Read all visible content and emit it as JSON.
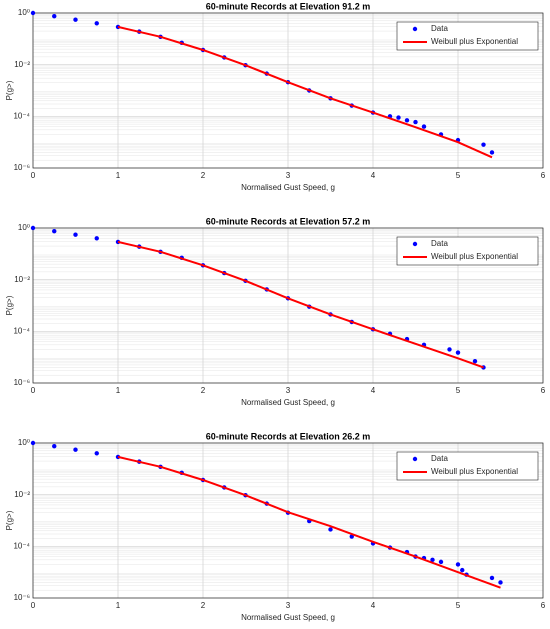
{
  "chart_data": [
    {
      "type": "scatter",
      "title": "60-minute Records at Elevation 91.2 m",
      "xlabel": "Normalised Gust Speed, g",
      "ylabel": "P(g>)",
      "ylog": true,
      "grid": true,
      "legend": "upper right",
      "xlim": [
        0,
        6
      ],
      "xticks": [
        0,
        1,
        2,
        3,
        4,
        5,
        6
      ],
      "ylim": [
        1e-06,
        1
      ],
      "yticks": [
        {
          "value": 1e-06,
          "label": "10⁻⁶"
        },
        {
          "value": 0.0001,
          "label": "10⁻⁴"
        },
        {
          "value": 0.01,
          "label": "10⁻²"
        },
        {
          "value": 1,
          "label": "10⁰"
        }
      ],
      "series": [
        {
          "name": "Data",
          "kind": "scatter",
          "color": "#0000ff",
          "x": [
            0,
            0.25,
            0.5,
            0.75,
            1,
            1.25,
            1.5,
            1.75,
            2,
            2.25,
            2.5,
            2.75,
            3,
            3.25,
            3.5,
            3.75,
            4,
            4.2,
            4.3,
            4.4,
            4.5,
            4.6,
            4.8,
            5,
            5.3,
            5.4
          ],
          "values": [
            1,
            0.75,
            0.55,
            0.4,
            0.29,
            0.19,
            0.12,
            0.07,
            0.037,
            0.019,
            0.0095,
            0.0045,
            0.0021,
            0.001,
            0.0005,
            0.00026,
            0.00014,
            0.0001,
            9e-05,
            7e-05,
            6e-05,
            4e-05,
            2e-05,
            1.2e-05,
            8e-06,
            4e-06
          ]
        },
        {
          "name": "Weibull plus Exponential",
          "kind": "line",
          "color": "#ff0000",
          "x": [
            1,
            1.5,
            2,
            2.5,
            3,
            3.5,
            4,
            4.5,
            5,
            5.4
          ],
          "values": [
            0.29,
            0.12,
            0.037,
            0.0095,
            0.0021,
            0.0005,
            0.00014,
            3.8e-05,
            1e-05,
            2.6e-06
          ]
        }
      ]
    },
    {
      "type": "scatter",
      "title": "60-minute Records at Elevation 57.2 m",
      "xlabel": "Normalised Gust Speed, g",
      "ylabel": "P(g>)",
      "ylog": true,
      "grid": true,
      "legend": "upper right",
      "xlim": [
        0,
        6
      ],
      "xticks": [
        0,
        1,
        2,
        3,
        4,
        5,
        6
      ],
      "ylim": [
        1e-06,
        1
      ],
      "yticks": [
        {
          "value": 1e-06,
          "label": "10⁻⁶"
        },
        {
          "value": 0.0001,
          "label": "10⁻⁴"
        },
        {
          "value": 0.01,
          "label": "10⁻²"
        },
        {
          "value": 1,
          "label": "10⁰"
        }
      ],
      "series": [
        {
          "name": "Data",
          "kind": "scatter",
          "color": "#0000ff",
          "x": [
            0,
            0.25,
            0.5,
            0.75,
            1,
            1.25,
            1.5,
            1.75,
            2,
            2.25,
            2.5,
            2.75,
            3,
            3.25,
            3.5,
            3.75,
            4,
            4.2,
            4.4,
            4.6,
            4.9,
            5,
            5.2,
            5.3
          ],
          "values": [
            1,
            0.75,
            0.55,
            0.4,
            0.29,
            0.19,
            0.12,
            0.07,
            0.036,
            0.018,
            0.009,
            0.0042,
            0.0019,
            0.0009,
            0.00045,
            0.00023,
            0.00012,
            8e-05,
            5e-05,
            3e-05,
            2e-05,
            1.5e-05,
            7e-06,
            4e-06
          ]
        },
        {
          "name": "Weibull plus Exponential",
          "kind": "line",
          "color": "#ff0000",
          "x": [
            1,
            1.5,
            2,
            2.5,
            3,
            3.5,
            4,
            4.5,
            5,
            5.3
          ],
          "values": [
            0.29,
            0.12,
            0.036,
            0.009,
            0.0019,
            0.00045,
            0.00012,
            3.3e-05,
            9e-06,
            4e-06
          ]
        }
      ]
    },
    {
      "type": "scatter",
      "title": "60-minute Records at Elevation 26.2 m",
      "xlabel": "Normalised Gust Speed, g",
      "ylabel": "P(g>)",
      "ylog": true,
      "grid": true,
      "legend": "upper right",
      "xlim": [
        0,
        6
      ],
      "xticks": [
        0,
        1,
        2,
        3,
        4,
        5,
        6
      ],
      "ylim": [
        1e-06,
        1
      ],
      "yticks": [
        {
          "value": 1e-06,
          "label": "10⁻⁶"
        },
        {
          "value": 0.0001,
          "label": "10⁻⁴"
        },
        {
          "value": 0.01,
          "label": "10⁻²"
        },
        {
          "value": 1,
          "label": "10⁰"
        }
      ],
      "series": [
        {
          "name": "Data",
          "kind": "scatter",
          "color": "#0000ff",
          "x": [
            0,
            0.25,
            0.5,
            0.75,
            1,
            1.25,
            1.5,
            1.75,
            2,
            2.25,
            2.5,
            2.75,
            3,
            3.25,
            3.5,
            3.75,
            4,
            4.2,
            4.4,
            4.5,
            4.6,
            4.7,
            4.8,
            5,
            5.05,
            5.1,
            5.4,
            5.5
          ],
          "values": [
            1,
            0.75,
            0.55,
            0.4,
            0.29,
            0.19,
            0.12,
            0.07,
            0.037,
            0.019,
            0.0095,
            0.0045,
            0.002,
            0.00095,
            0.00045,
            0.00024,
            0.00013,
            9e-05,
            6e-05,
            4e-05,
            3.5e-05,
            3e-05,
            2.5e-05,
            2e-05,
            1.2e-05,
            8e-06,
            6e-06,
            4e-06
          ]
        },
        {
          "name": "Weibull plus Exponential",
          "kind": "line",
          "color": "#ff0000",
          "x": [
            1,
            1.5,
            2,
            2.5,
            3,
            3.5,
            4,
            4.5,
            5,
            5.5
          ],
          "values": [
            0.29,
            0.12,
            0.037,
            0.0095,
            0.0021,
            0.0006,
            0.00015,
            4e-05,
            1e-05,
            2.5e-06
          ]
        }
      ]
    }
  ]
}
